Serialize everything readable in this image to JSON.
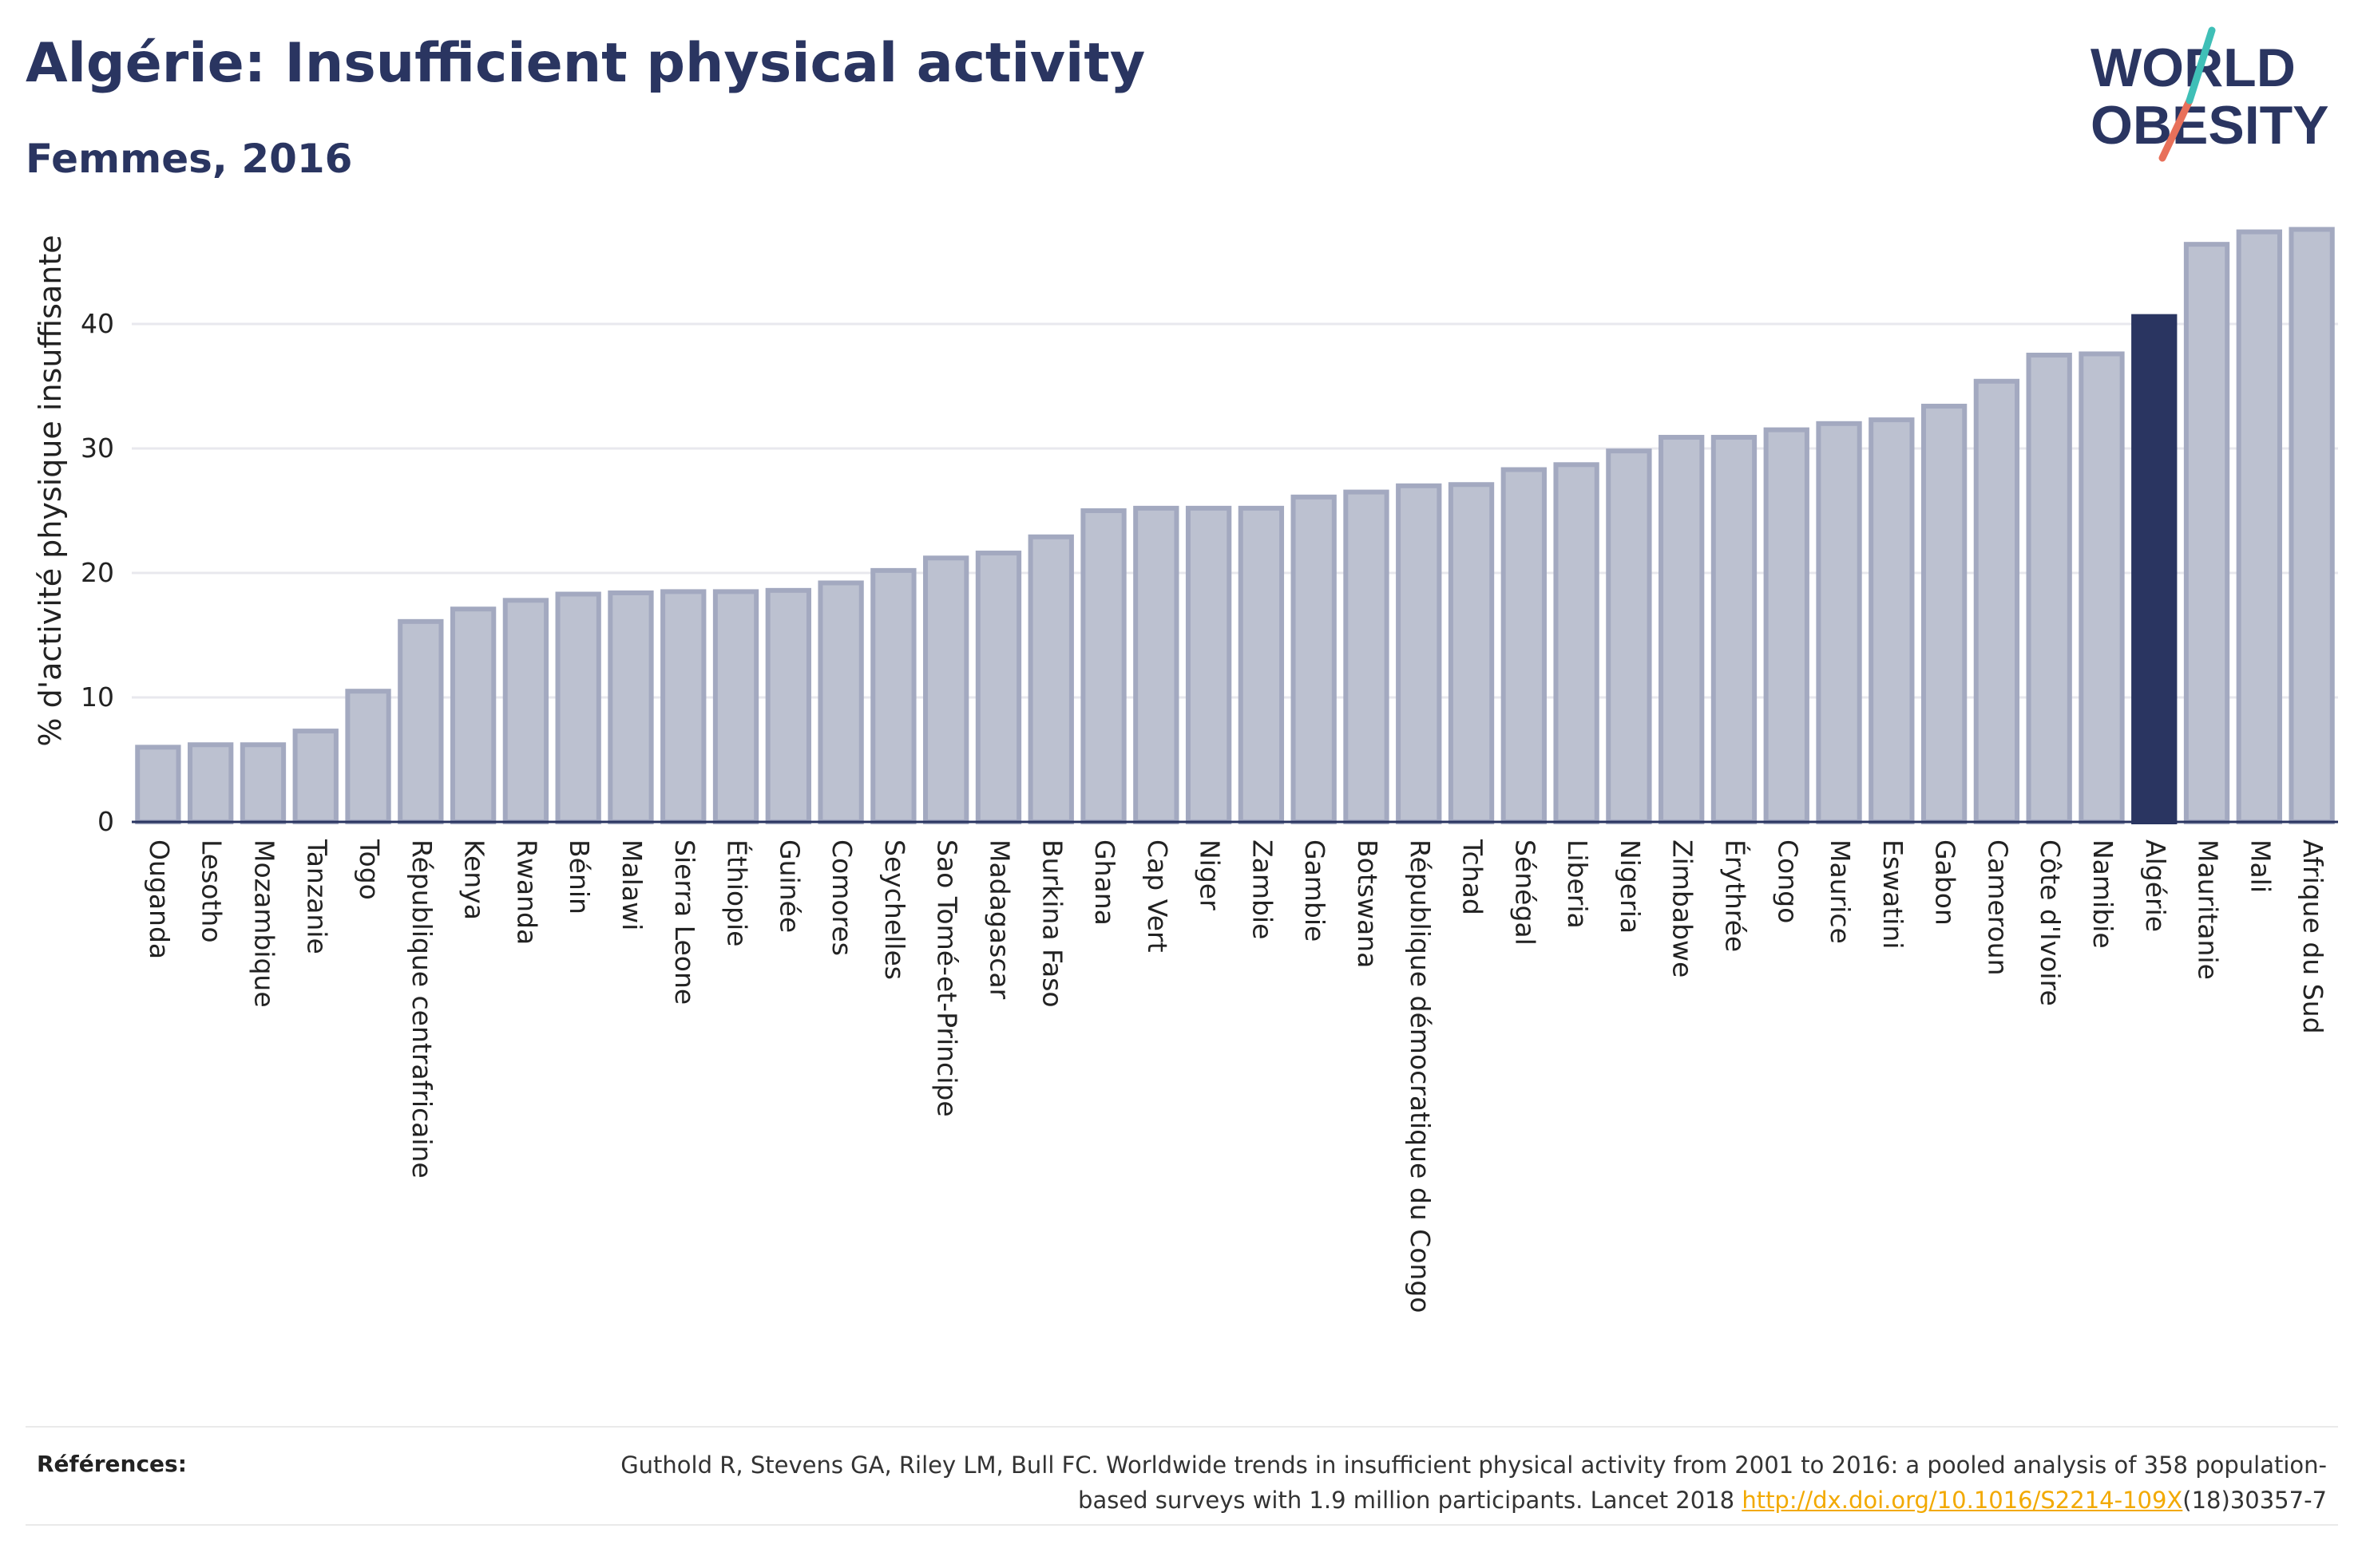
{
  "title": "Algérie: Insufficient physical activity",
  "subtitle": "Femmes, 2016",
  "logo": {
    "line1": "WORLD",
    "line2": "OBESITY"
  },
  "references": {
    "label": "Références:",
    "text": "Guthold R, Stevens GA, Riley LM, Bull FC. Worldwide trends in insufficient physical activity from 2001 to 2016: a pooled analysis of 358 population-based surveys with 1.9 million participants. Lancet 2018",
    "link": "http://dx.doi.org/10.1016/S2214-109X",
    "suffix": "(18)30357-7"
  },
  "colors": {
    "bar_fill": "#bcc1d0",
    "bar_stroke": "#a3a9c0",
    "highlight": "#2a3561",
    "grid": "#e8e8ee",
    "text": "#222222"
  },
  "chart_data": {
    "type": "bar",
    "ylabel": "% d'activité physique insuffisante",
    "xlabel": "",
    "ylim": [
      0,
      50
    ],
    "yticks": [
      0,
      10,
      20,
      30,
      40
    ],
    "grid": true,
    "highlight": "Algérie",
    "categories": [
      "Ouganda",
      "Lesotho",
      "Mozambique",
      "Tanzanie",
      "Togo",
      "République centrafricaine",
      "Kenya",
      "Rwanda",
      "Bénin",
      "Malawi",
      "Sierra Leone",
      "Éthiopie",
      "Guinée",
      "Comores",
      "Seychelles",
      "Sao Tomé-et-Principe",
      "Madagascar",
      "Burkina Faso",
      "Ghana",
      "Cap Vert",
      "Niger",
      "Zambie",
      "Gambie",
      "Botswana",
      "République démocratique du Congo",
      "Tchad",
      "Sénégal",
      "Liberia",
      "Nigeria",
      "Zimbabwe",
      "Érythrée",
      "Congo",
      "Maurice",
      "Eswatini",
      "Gabon",
      "Cameroun",
      "Côte d'Ivoire",
      "Namibie",
      "Algérie",
      "Mauritanie",
      "Mali",
      "Afrique du Sud"
    ],
    "values": [
      6.0,
      6.2,
      6.2,
      7.3,
      10.5,
      16.1,
      17.1,
      17.8,
      18.3,
      18.4,
      18.5,
      18.5,
      18.6,
      19.2,
      20.2,
      21.2,
      21.6,
      22.9,
      25.0,
      25.2,
      25.2,
      25.2,
      26.1,
      26.5,
      27.0,
      27.1,
      28.3,
      28.7,
      29.8,
      30.9,
      30.9,
      31.5,
      32.0,
      32.3,
      33.4,
      35.4,
      37.5,
      37.6,
      40.6,
      46.4,
      47.4,
      47.6
    ]
  }
}
